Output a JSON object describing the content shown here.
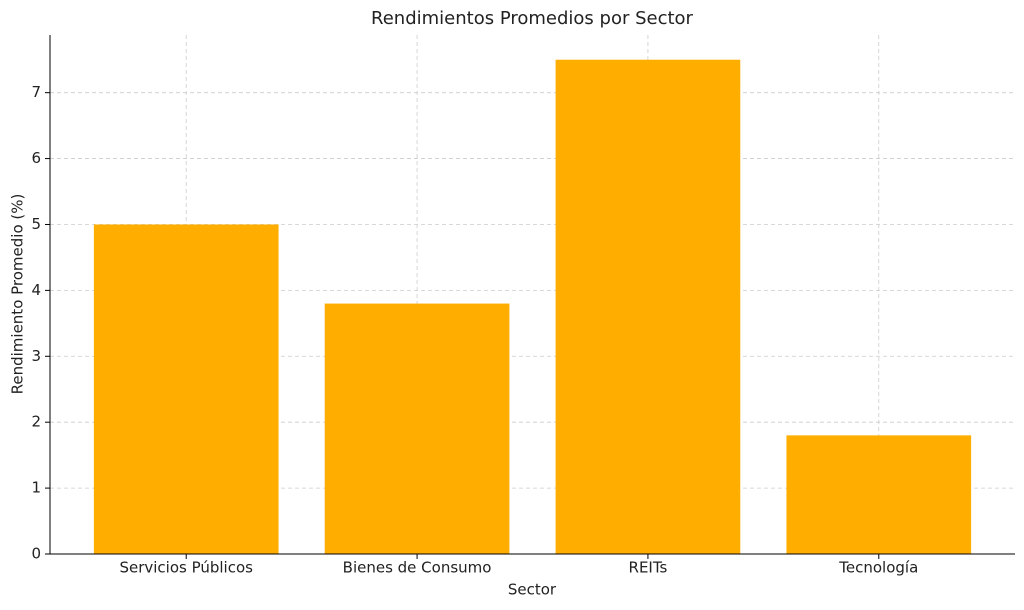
{
  "chart_data": {
    "type": "bar",
    "title": "Rendimientos Promedios por Sector",
    "x_label": "Sector",
    "y_label": "Rendimiento Promedio (%)",
    "categories": [
      "Servicios Públicos",
      "Bienes de Consumo",
      "REITs",
      "Tecnología"
    ],
    "values": [
      5.0,
      3.8,
      7.5,
      1.8
    ],
    "color": "#ffae00",
    "ylim": [
      0,
      7.875
    ],
    "yticks": [
      0,
      1,
      2,
      3,
      4,
      5,
      6,
      7
    ],
    "grid": true
  }
}
